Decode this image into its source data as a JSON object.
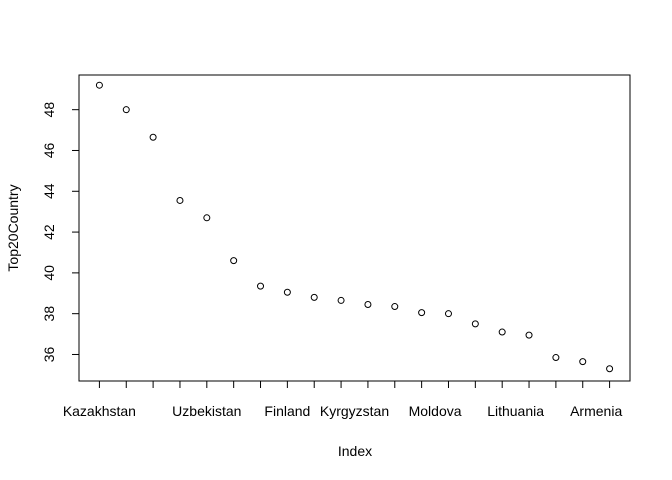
{
  "chart_data": {
    "type": "scatter",
    "xlabel": "Index",
    "ylabel": "Top20Country",
    "xlim": [
      0.24,
      20.76
    ],
    "ylim": [
      34.7,
      49.7
    ],
    "yticks": [
      36,
      38,
      40,
      42,
      44,
      46,
      48
    ],
    "x_tick_positions": [
      1,
      2,
      3,
      4,
      5,
      6,
      7,
      8,
      9,
      10,
      11,
      12,
      13,
      14,
      15,
      16,
      17,
      18,
      19,
      20
    ],
    "x_tick_labels": [
      {
        "x": 1,
        "label": "Kazakhstan"
      },
      {
        "x": 5,
        "label": "Uzbekistan"
      },
      {
        "x": 8,
        "label": "Finland"
      },
      {
        "x": 10.5,
        "label": "Kyrgyzstan"
      },
      {
        "x": 13.5,
        "label": "Moldova"
      },
      {
        "x": 16.5,
        "label": "Lithuania"
      },
      {
        "x": 19.5,
        "label": "Armenia"
      }
    ],
    "points": [
      {
        "x": 1,
        "y": 49.2
      },
      {
        "x": 2,
        "y": 48.0
      },
      {
        "x": 3,
        "y": 46.65
      },
      {
        "x": 4,
        "y": 43.55
      },
      {
        "x": 5,
        "y": 42.7
      },
      {
        "x": 6,
        "y": 40.6
      },
      {
        "x": 7,
        "y": 39.35
      },
      {
        "x": 8,
        "y": 39.05
      },
      {
        "x": 9,
        "y": 38.8
      },
      {
        "x": 10,
        "y": 38.65
      },
      {
        "x": 11,
        "y": 38.45
      },
      {
        "x": 12,
        "y": 38.35
      },
      {
        "x": 13,
        "y": 38.05
      },
      {
        "x": 14,
        "y": 38.0
      },
      {
        "x": 15,
        "y": 37.5
      },
      {
        "x": 16,
        "y": 37.1
      },
      {
        "x": 17,
        "y": 36.95
      },
      {
        "x": 18,
        "y": 35.85
      },
      {
        "x": 19,
        "y": 35.65
      },
      {
        "x": 20,
        "y": 35.3
      }
    ]
  }
}
